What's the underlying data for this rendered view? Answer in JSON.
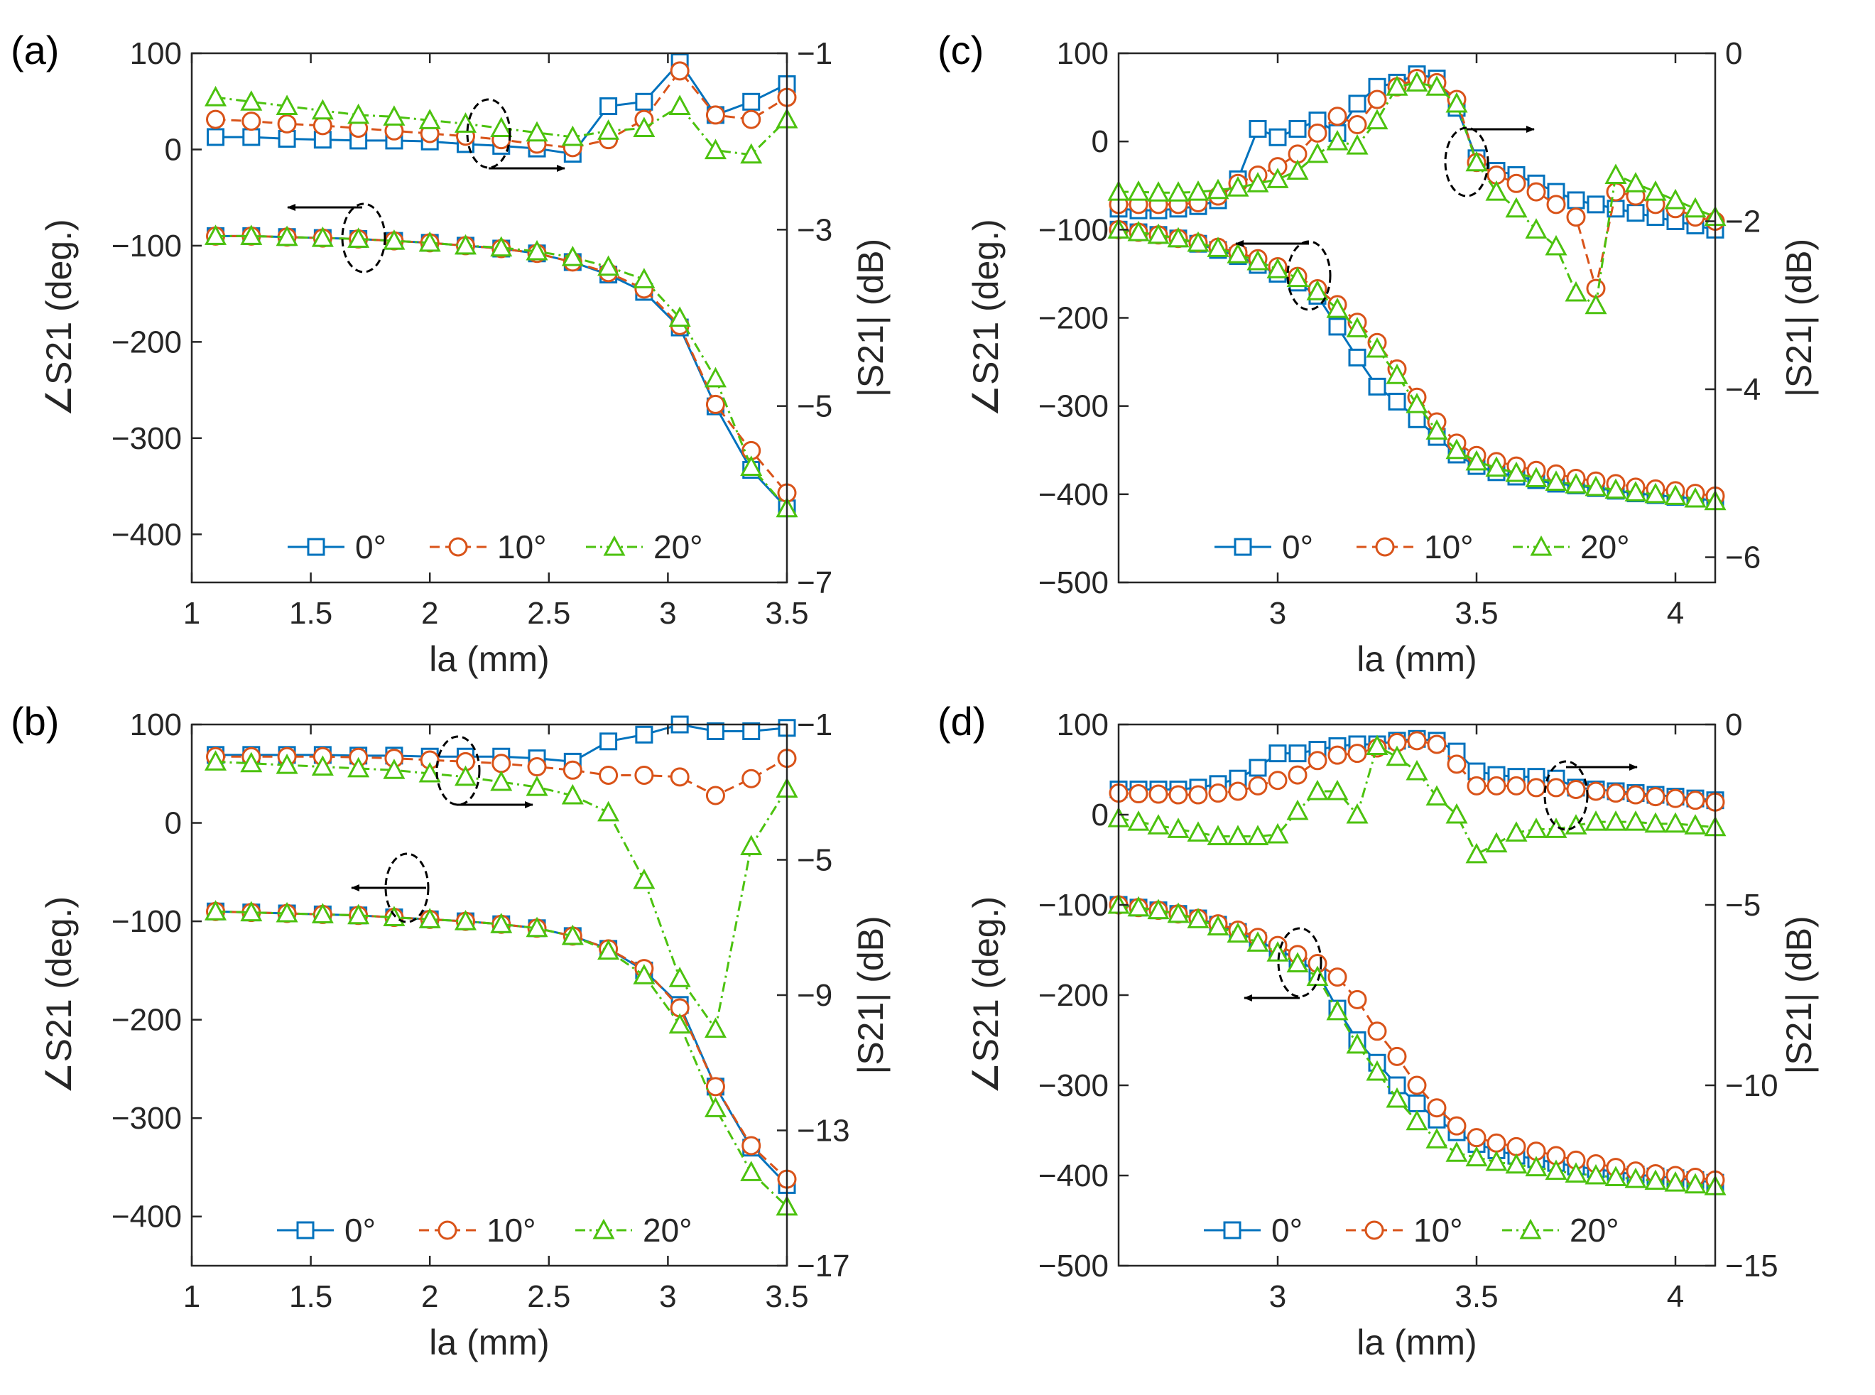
{
  "chart_data": [
    {
      "type": "line",
      "panel_label": "(a)",
      "xlabel": "la (mm)",
      "ylabel_left": "∠S21 (deg.)",
      "ylabel_right": "|S21| (dB)",
      "xlim": [
        1,
        3.5
      ],
      "ylim_left": [
        -450,
        100
      ],
      "ylim_right": [
        -7,
        -1
      ],
      "xticks": [
        "1",
        "1.5",
        "2",
        "2.5",
        "3",
        "3.5"
      ],
      "yticks_left": [
        "100",
        "0",
        "−100",
        "−200",
        "−300",
        "−400"
      ],
      "yticks_right": [
        "−1",
        "−3",
        "−5",
        "−7"
      ],
      "legend": [
        "0°",
        "10°",
        "20°"
      ],
      "x": [
        1.1,
        1.25,
        1.4,
        1.55,
        1.7,
        1.85,
        2.0,
        2.15,
        2.3,
        2.45,
        2.6,
        2.75,
        2.9,
        3.05,
        3.2,
        3.35,
        3.5
      ],
      "phase_series": [
        {
          "name": "0°",
          "values": [
            -90,
            -90,
            -91,
            -92,
            -93,
            -95,
            -97,
            -100,
            -103,
            -108,
            -117,
            -130,
            -148,
            -185,
            -267,
            -333,
            -373
          ]
        },
        {
          "name": "10°",
          "values": [
            -90,
            -90,
            -91,
            -92,
            -93,
            -95,
            -97,
            -100,
            -103,
            -108,
            -117,
            -128,
            -145,
            -183,
            -265,
            -313,
            -357
          ]
        },
        {
          "name": "20°",
          "values": [
            -90,
            -90,
            -91,
            -92,
            -93,
            -95,
            -97,
            -100,
            -102,
            -106,
            -112,
            -122,
            -135,
            -175,
            -238,
            -330,
            -373
          ]
        }
      ],
      "magnitude_series": [
        {
          "name": "0°",
          "values": [
            -1.95,
            -1.95,
            -1.97,
            -1.98,
            -1.99,
            -1.99,
            -2.0,
            -2.03,
            -2.05,
            -2.08,
            -2.14,
            -1.6,
            -1.55,
            -1.1,
            -1.7,
            -1.55,
            -1.35
          ]
        },
        {
          "name": "10°",
          "values": [
            -1.75,
            -1.77,
            -1.8,
            -1.82,
            -1.85,
            -1.88,
            -1.91,
            -1.94,
            -1.98,
            -2.03,
            -2.07,
            -1.98,
            -1.75,
            -1.2,
            -1.7,
            -1.75,
            -1.5
          ]
        },
        {
          "name": "20°",
          "values": [
            -1.5,
            -1.55,
            -1.6,
            -1.65,
            -1.7,
            -1.72,
            -1.76,
            -1.8,
            -1.85,
            -1.9,
            -1.95,
            -1.88,
            -1.85,
            -1.6,
            -2.1,
            -2.15,
            -1.75
          ]
        }
      ]
    },
    {
      "type": "line",
      "panel_label": "(b)",
      "xlabel": "la (mm)",
      "ylabel_left": "∠S21 (deg.)",
      "ylabel_right": "|S21| (dB)",
      "xlim": [
        1,
        3.5
      ],
      "ylim_left": [
        -450,
        100
      ],
      "ylim_right": [
        -17,
        -1
      ],
      "xticks": [
        "1",
        "1.5",
        "2",
        "2.5",
        "3",
        "3.5"
      ],
      "yticks_left": [
        "100",
        "0",
        "−100",
        "−200",
        "−300",
        "−400"
      ],
      "yticks_right": [
        "−1",
        "−5",
        "−9",
        "−13",
        "−17"
      ],
      "legend": [
        "0°",
        "10°",
        "20°"
      ],
      "x": [
        1.1,
        1.25,
        1.4,
        1.55,
        1.7,
        1.85,
        2.0,
        2.15,
        2.3,
        2.45,
        2.6,
        2.75,
        2.9,
        3.05,
        3.2,
        3.35,
        3.5
      ],
      "phase_series": [
        {
          "name": "0°",
          "values": [
            -90,
            -91,
            -92,
            -93,
            -94,
            -96,
            -98,
            -100,
            -103,
            -107,
            -115,
            -128,
            -150,
            -185,
            -268,
            -330,
            -368
          ]
        },
        {
          "name": "10°",
          "values": [
            -90,
            -91,
            -92,
            -93,
            -94,
            -96,
            -98,
            -100,
            -103,
            -107,
            -115,
            -128,
            -148,
            -188,
            -268,
            -328,
            -362
          ]
        },
        {
          "name": "20°",
          "values": [
            -90,
            -91,
            -92,
            -93,
            -94,
            -96,
            -98,
            -100,
            -103,
            -107,
            -115,
            -130,
            -155,
            -205,
            -290,
            -355,
            -390
          ]
        }
      ],
      "magnitude_series": [
        {
          "name": "0°",
          "values": [
            -1.9,
            -1.9,
            -1.9,
            -1.9,
            -1.92,
            -1.92,
            -1.95,
            -1.95,
            -1.95,
            -2.0,
            -2.1,
            -1.5,
            -1.3,
            -1.0,
            -1.2,
            -1.2,
            -1.1
          ]
        },
        {
          "name": "10°",
          "values": [
            -1.95,
            -1.95,
            -1.95,
            -1.95,
            -1.97,
            -2.0,
            -2.05,
            -2.1,
            -2.15,
            -2.25,
            -2.35,
            -2.5,
            -2.5,
            -2.55,
            -3.1,
            -2.6,
            -2.0
          ]
        },
        {
          "name": "20°",
          "values": [
            -2.1,
            -2.15,
            -2.2,
            -2.25,
            -2.3,
            -2.35,
            -2.45,
            -2.55,
            -2.7,
            -2.85,
            -3.1,
            -3.6,
            -5.6,
            -8.5,
            -10.0,
            -4.6,
            -2.9
          ]
        }
      ]
    },
    {
      "type": "line",
      "panel_label": "(c)",
      "xlabel": "la (mm)",
      "ylabel_left": "∠S21 (deg.)",
      "ylabel_right": "|S21| (dB)",
      "xlim": [
        2.6,
        4.1
      ],
      "ylim_left": [
        -500,
        100
      ],
      "ylim_right": [
        -6.3,
        0
      ],
      "xticks": [
        "3",
        "3.5",
        "4"
      ],
      "yticks_left": [
        "100",
        "0",
        "−100",
        "−200",
        "−300",
        "−400",
        "−500"
      ],
      "yticks_right": [
        "0",
        "−2",
        "−4",
        "−6"
      ],
      "legend": [
        "0°",
        "10°",
        "20°"
      ],
      "x": [
        2.6,
        2.65,
        2.7,
        2.75,
        2.8,
        2.85,
        2.9,
        2.95,
        3.0,
        3.05,
        3.1,
        3.15,
        3.2,
        3.25,
        3.3,
        3.35,
        3.4,
        3.45,
        3.5,
        3.55,
        3.6,
        3.65,
        3.7,
        3.75,
        3.8,
        3.85,
        3.9,
        3.95,
        4.0,
        4.05,
        4.1
      ],
      "phase_series": [
        {
          "name": "0°",
          "values": [
            -100,
            -103,
            -106,
            -110,
            -116,
            -123,
            -130,
            -140,
            -150,
            -160,
            -175,
            -210,
            -245,
            -278,
            -295,
            -315,
            -335,
            -355,
            -368,
            -375,
            -380,
            -384,
            -388,
            -390,
            -393,
            -396,
            -399,
            -401,
            -403,
            -405,
            -407
          ]
        },
        {
          "name": "10°",
          "values": [
            -100,
            -103,
            -106,
            -110,
            -115,
            -120,
            -126,
            -133,
            -142,
            -153,
            -167,
            -185,
            -205,
            -228,
            -258,
            -290,
            -318,
            -342,
            -356,
            -363,
            -368,
            -373,
            -377,
            -382,
            -385,
            -388,
            -392,
            -394,
            -396,
            -399,
            -402
          ]
        },
        {
          "name": "20°",
          "values": [
            -100,
            -103,
            -106,
            -110,
            -115,
            -121,
            -128,
            -136,
            -145,
            -155,
            -170,
            -190,
            -212,
            -235,
            -265,
            -298,
            -328,
            -350,
            -363,
            -370,
            -376,
            -382,
            -386,
            -389,
            -392,
            -395,
            -398,
            -400,
            -402,
            -405,
            -408
          ]
        }
      ],
      "magnitude_series": [
        {
          "name": "0°",
          "values": [
            -1.85,
            -1.87,
            -1.87,
            -1.85,
            -1.82,
            -1.75,
            -1.5,
            -0.9,
            -1.0,
            -0.9,
            -0.8,
            -0.95,
            -0.6,
            -0.4,
            -0.35,
            -0.25,
            -0.3,
            -0.65,
            -1.25,
            -1.4,
            -1.45,
            -1.55,
            -1.65,
            -1.75,
            -1.8,
            -1.85,
            -1.9,
            -1.95,
            -2.0,
            -2.05,
            -2.1
          ]
        },
        {
          "name": "10°",
          "values": [
            -1.8,
            -1.8,
            -1.8,
            -1.8,
            -1.78,
            -1.7,
            -1.55,
            -1.45,
            -1.35,
            -1.2,
            -0.95,
            -0.75,
            -0.85,
            -0.55,
            -0.4,
            -0.3,
            -0.35,
            -0.55,
            -1.3,
            -1.45,
            -1.55,
            -1.65,
            -1.8,
            -1.95,
            -2.8,
            -1.65,
            -1.7,
            -1.8,
            -1.85,
            -1.95,
            -2.0
          ]
        },
        {
          "name": "20°",
          "values": [
            -1.65,
            -1.65,
            -1.66,
            -1.66,
            -1.65,
            -1.63,
            -1.6,
            -1.55,
            -1.5,
            -1.4,
            -1.2,
            -1.05,
            -1.1,
            -0.8,
            -0.4,
            -0.35,
            -0.4,
            -0.6,
            -1.3,
            -1.65,
            -1.85,
            -2.1,
            -2.3,
            -2.85,
            -3.0,
            -1.45,
            -1.55,
            -1.65,
            -1.75,
            -1.85,
            -1.95
          ]
        }
      ]
    },
    {
      "type": "line",
      "panel_label": "(d)",
      "xlabel": "la (mm)",
      "ylabel_left": "∠S21 (deg.)",
      "ylabel_right": "|S21| (dB)",
      "xlim": [
        2.6,
        4.1
      ],
      "ylim_left": [
        -500,
        100
      ],
      "ylim_right": [
        -15,
        0
      ],
      "xticks": [
        "3",
        "3.5",
        "4"
      ],
      "yticks_left": [
        "100",
        "0",
        "−100",
        "−200",
        "−300",
        "−400",
        "−500"
      ],
      "yticks_right": [
        "0",
        "−5",
        "−10",
        "−15"
      ],
      "legend": [
        "0°",
        "10°",
        "20°"
      ],
      "x": [
        2.6,
        2.65,
        2.7,
        2.75,
        2.8,
        2.85,
        2.9,
        2.95,
        3.0,
        3.05,
        3.1,
        3.15,
        3.2,
        3.25,
        3.3,
        3.35,
        3.4,
        3.45,
        3.5,
        3.55,
        3.6,
        3.65,
        3.7,
        3.75,
        3.8,
        3.85,
        3.9,
        3.95,
        4.0,
        4.05,
        4.1
      ],
      "phase_series": [
        {
          "name": "0°",
          "values": [
            -100,
            -103,
            -106,
            -110,
            -115,
            -122,
            -130,
            -140,
            -150,
            -160,
            -175,
            -215,
            -250,
            -275,
            -300,
            -320,
            -338,
            -352,
            -365,
            -372,
            -378,
            -382,
            -386,
            -390,
            -393,
            -396,
            -399,
            -401,
            -403,
            -405,
            -408
          ]
        },
        {
          "name": "10°",
          "values": [
            -100,
            -103,
            -106,
            -110,
            -115,
            -121,
            -128,
            -136,
            -145,
            -155,
            -165,
            -180,
            -205,
            -240,
            -268,
            -300,
            -325,
            -345,
            -358,
            -364,
            -368,
            -373,
            -378,
            -383,
            -387,
            -391,
            -395,
            -398,
            -400,
            -402,
            -405
          ]
        },
        {
          "name": "20°",
          "values": [
            -100,
            -103,
            -106,
            -110,
            -116,
            -124,
            -132,
            -142,
            -153,
            -165,
            -180,
            -218,
            -255,
            -285,
            -315,
            -340,
            -360,
            -375,
            -380,
            -385,
            -388,
            -391,
            -395,
            -398,
            -400,
            -402,
            -404,
            -406,
            -408,
            -410,
            -412
          ]
        }
      ],
      "magnitude_series": [
        {
          "name": "0°",
          "values": [
            -1.8,
            -1.8,
            -1.8,
            -1.8,
            -1.75,
            -1.65,
            -1.5,
            -1.2,
            -0.8,
            -0.8,
            -0.7,
            -0.6,
            -0.55,
            -0.55,
            -0.45,
            -0.4,
            -0.45,
            -0.75,
            -1.3,
            -1.4,
            -1.45,
            -1.45,
            -1.5,
            -1.75,
            -1.8,
            -1.85,
            -1.9,
            -1.95,
            -2.0,
            -2.05,
            -2.1
          ]
        },
        {
          "name": "10°",
          "values": [
            -1.9,
            -1.92,
            -1.93,
            -1.95,
            -1.95,
            -1.9,
            -1.85,
            -1.7,
            -1.55,
            -1.4,
            -1.0,
            -0.85,
            -0.8,
            -0.65,
            -0.5,
            -0.45,
            -0.55,
            -1.1,
            -1.7,
            -1.7,
            -1.7,
            -1.75,
            -1.75,
            -1.8,
            -1.85,
            -1.9,
            -1.95,
            -2.0,
            -2.05,
            -2.1,
            -2.15
          ]
        },
        {
          "name": "20°",
          "values": [
            -2.6,
            -2.7,
            -2.8,
            -2.9,
            -3.0,
            -3.1,
            -3.1,
            -3.1,
            -3.05,
            -2.4,
            -1.85,
            -1.85,
            -2.5,
            -0.6,
            -0.9,
            -1.3,
            -2.0,
            -2.5,
            -3.6,
            -3.3,
            -3.0,
            -2.9,
            -2.9,
            -2.8,
            -2.7,
            -2.7,
            -2.7,
            -2.75,
            -2.75,
            -2.8,
            -2.85
          ]
        }
      ]
    }
  ],
  "colors": {
    "series_0": "#0072BD",
    "series_10": "#D95319",
    "series_20": "#4CC20F",
    "axis": "#262626"
  }
}
